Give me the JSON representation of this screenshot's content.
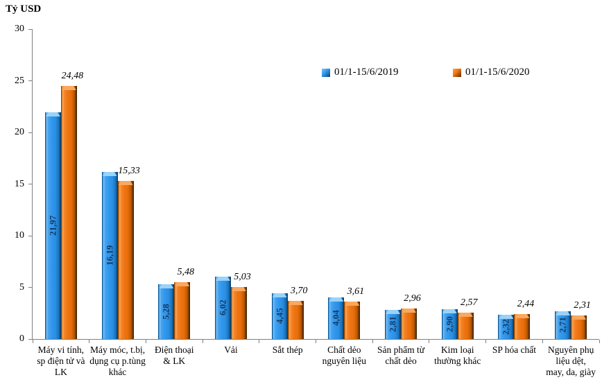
{
  "chart_data": {
    "type": "bar",
    "title": "Tỷ USD",
    "xlabel": "",
    "ylabel": "Tỷ USD",
    "ylim": [
      0,
      30
    ],
    "y_step": 5,
    "grid": false,
    "legend_position": "top-center",
    "decimal_separator": ",",
    "categories": [
      "Máy vi tính,\nsp điện tử và\nLK",
      "Máy móc, t.bị,\ndụng cụ p.tùng\nkhác",
      "Điện thoại\n& LK",
      "Vải",
      "Sắt thép",
      "Chất dẻo\nnguyên liệu",
      "Sản phẩm từ\nchất dẻo",
      "Kim loại\nthường khác",
      "SP hóa chất",
      "Nguyên phụ\nliệu dệt,\nmay, da, giày"
    ],
    "series": [
      {
        "name": "01/1-15/6/2019",
        "color": "#2E96EC",
        "label_style": "bold-vertical-inside",
        "label_color": "#17375D",
        "values": [
          21.97,
          16.19,
          5.28,
          6.02,
          4.45,
          4.04,
          2.81,
          2.9,
          2.32,
          2.71
        ]
      },
      {
        "name": "01/1-15/6/2020",
        "color": "#EE7210",
        "label_style": "italic-above",
        "label_color": "#000000",
        "values": [
          24.48,
          15.33,
          5.48,
          5.03,
          3.7,
          3.61,
          2.96,
          2.57,
          2.44,
          2.31
        ]
      }
    ],
    "axis_color": "#7f7f7f"
  }
}
